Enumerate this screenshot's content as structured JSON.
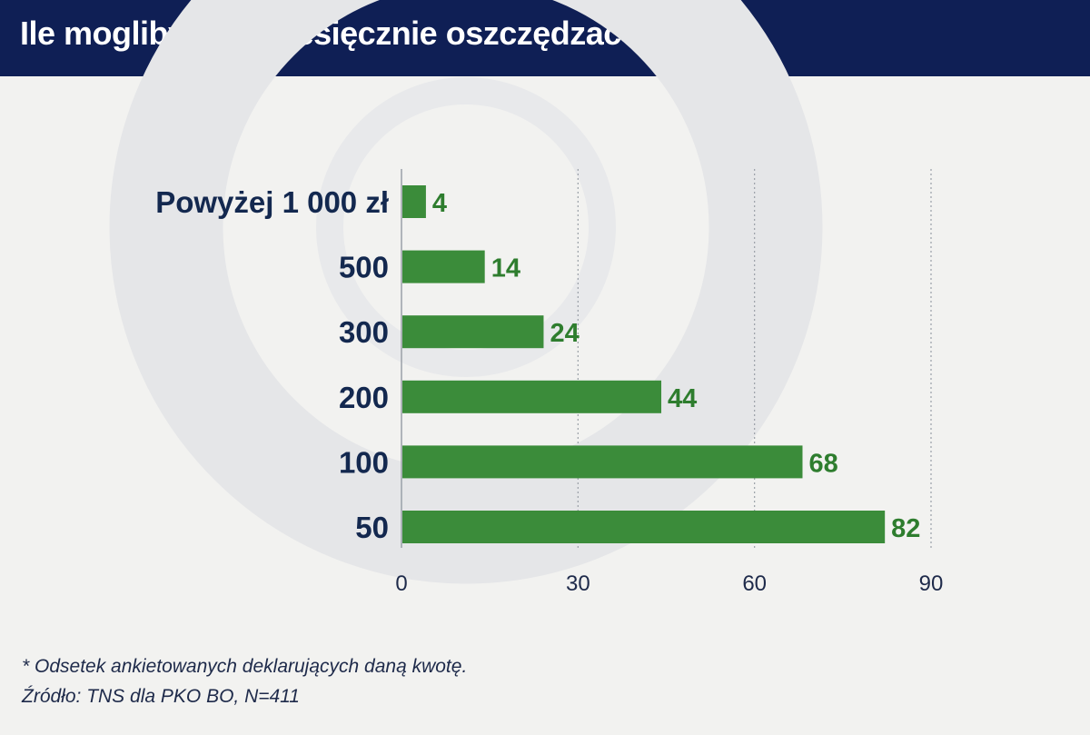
{
  "header": {
    "title": "Ile moglibyśmy miesięcznie oszczędzać*"
  },
  "colors": {
    "header_bg": "#0f1f55",
    "bar": "#3b8c3a",
    "label": "#13284f",
    "value_label": "#2e7d2e"
  },
  "chart_data": {
    "type": "bar",
    "orientation": "horizontal",
    "categories": [
      "Powyżej 1 000 zł",
      "500",
      "300",
      "200",
      "100",
      "50"
    ],
    "values": [
      4,
      14,
      24,
      44,
      68,
      82
    ],
    "xlim": [
      0,
      90
    ],
    "xticks": [
      0,
      30,
      60,
      90
    ],
    "grid": "vertical-dotted"
  },
  "footer": {
    "footnote": "* Odsetek ankietowanych deklarujących daną kwotę.",
    "source": "Źródło: TNS dla PKO BO, N=411"
  }
}
